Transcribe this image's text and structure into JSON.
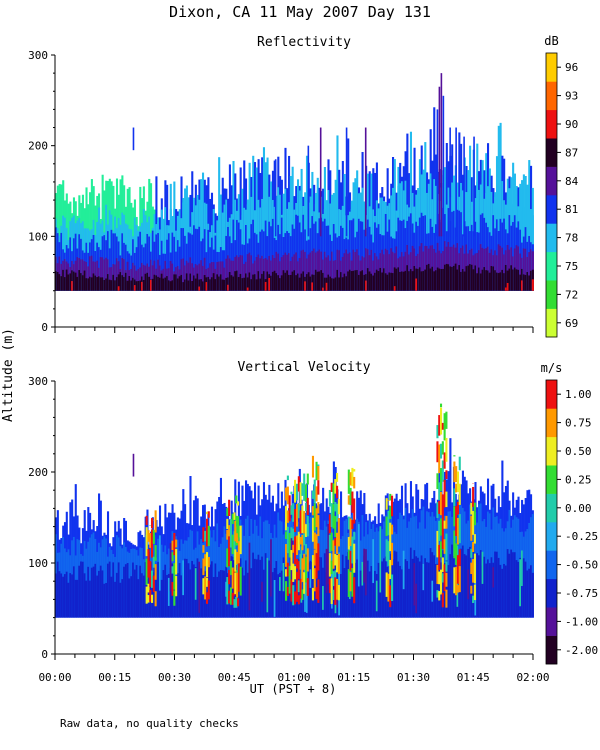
{
  "figure": {
    "title": "Dixon, CA 11 May 2007  Day 131",
    "ylabel": "Altitude (m)",
    "xlabel": "UT  (PST + 8)",
    "footnote": "Raw data, no quality checks",
    "time_ticks": [
      "00:00",
      "00:15",
      "00:30",
      "00:45",
      "01:00",
      "01:15",
      "01:30",
      "01:45",
      "02:00"
    ],
    "xlim_minutes": [
      0,
      120
    ]
  },
  "chart_data": [
    {
      "type": "heatmap",
      "title": "Reflectivity",
      "ylim": [
        0,
        300
      ],
      "yticks": [
        0,
        100,
        200,
        300
      ],
      "colorbar": {
        "unit": "dB",
        "labels": [
          "69",
          "72",
          "75",
          "78",
          "81",
          "84",
          "87",
          "90",
          "93",
          "96"
        ],
        "colors": [
          "#ccff33",
          "#33dd33",
          "#22ee99",
          "#22bbee",
          "#1133ee",
          "#551199",
          "#220022",
          "#ee1111",
          "#ff6600",
          "#ffcc00"
        ]
      },
      "base_altitude": 40,
      "layers": [
        {
          "name": "green edge",
          "color": "#22ee99"
        },
        {
          "name": "cyan zone",
          "color": "#22bbee"
        },
        {
          "name": "blue zone",
          "color": "#1133ee"
        },
        {
          "name": "purple zone",
          "color": "#551199"
        },
        {
          "name": "dark base",
          "color": "#220022"
        }
      ],
      "profile": [
        {
          "t": 0,
          "top": 140,
          "cyan": 115,
          "blue": 95,
          "purple": 75,
          "dark": 60
        },
        {
          "t": 5,
          "top": 135,
          "cyan": 112,
          "blue": 92,
          "purple": 72,
          "dark": 58
        },
        {
          "t": 10,
          "top": 140,
          "cyan": 118,
          "blue": 95,
          "purple": 72,
          "dark": 57
        },
        {
          "t": 15,
          "top": 150,
          "cyan": 120,
          "blue": 95,
          "purple": 70,
          "dark": 56
        },
        {
          "t": 20,
          "top": 130,
          "cyan": 115,
          "blue": 90,
          "purple": 68,
          "dark": 55
        },
        {
          "t": 25,
          "top": 145,
          "cyan": 120,
          "blue": 95,
          "purple": 70,
          "dark": 56
        },
        {
          "t": 30,
          "top": 140,
          "cyan": 118,
          "blue": 92,
          "purple": 68,
          "dark": 54
        },
        {
          "t": 35,
          "top": 150,
          "cyan": 125,
          "blue": 100,
          "purple": 72,
          "dark": 55
        },
        {
          "t": 40,
          "top": 145,
          "cyan": 120,
          "blue": 95,
          "purple": 70,
          "dark": 55
        },
        {
          "t": 45,
          "top": 165,
          "cyan": 135,
          "blue": 105,
          "purple": 75,
          "dark": 58
        },
        {
          "t": 50,
          "top": 160,
          "cyan": 135,
          "blue": 105,
          "purple": 75,
          "dark": 57
        },
        {
          "t": 55,
          "top": 170,
          "cyan": 140,
          "blue": 110,
          "purple": 78,
          "dark": 58
        },
        {
          "t": 60,
          "top": 165,
          "cyan": 140,
          "blue": 110,
          "purple": 78,
          "dark": 58
        },
        {
          "t": 65,
          "top": 170,
          "cyan": 145,
          "blue": 110,
          "purple": 80,
          "dark": 60
        },
        {
          "t": 70,
          "top": 160,
          "cyan": 135,
          "blue": 105,
          "purple": 78,
          "dark": 58
        },
        {
          "t": 75,
          "top": 165,
          "cyan": 140,
          "blue": 110,
          "purple": 80,
          "dark": 60
        },
        {
          "t": 80,
          "top": 160,
          "cyan": 135,
          "blue": 108,
          "purple": 80,
          "dark": 60
        },
        {
          "t": 85,
          "top": 165,
          "cyan": 140,
          "blue": 112,
          "purple": 82,
          "dark": 62
        },
        {
          "t": 90,
          "top": 175,
          "cyan": 150,
          "blue": 115,
          "purple": 85,
          "dark": 65
        },
        {
          "t": 95,
          "top": 185,
          "cyan": 155,
          "blue": 118,
          "purple": 88,
          "dark": 66
        },
        {
          "t": 100,
          "top": 180,
          "cyan": 150,
          "blue": 118,
          "purple": 88,
          "dark": 66
        },
        {
          "t": 105,
          "top": 175,
          "cyan": 148,
          "blue": 115,
          "purple": 85,
          "dark": 64
        },
        {
          "t": 110,
          "top": 172,
          "cyan": 145,
          "blue": 112,
          "purple": 85,
          "dark": 64
        },
        {
          "t": 115,
          "top": 170,
          "cyan": 142,
          "blue": 110,
          "purple": 84,
          "dark": 63
        },
        {
          "t": 120,
          "top": 160,
          "cyan": 135,
          "blue": 105,
          "purple": 80,
          "dark": 60
        }
      ],
      "spikes": [
        {
          "t": 19.5,
          "alt": 220,
          "alt_from": 195,
          "color": "#1133ee"
        },
        {
          "t": 55.2,
          "alt": 185,
          "color": "#1133ee"
        },
        {
          "t": 63.4,
          "alt": 200,
          "color": "#1133ee"
        },
        {
          "t": 66.5,
          "alt": 220,
          "color": "#551199"
        },
        {
          "t": 73.0,
          "alt": 220,
          "color": "#1133ee"
        },
        {
          "t": 77.8,
          "alt": 220,
          "color": "#551199"
        },
        {
          "t": 95.8,
          "alt": 240,
          "color": "#1133ee"
        },
        {
          "t": 96.3,
          "alt": 265,
          "color": "#551199"
        },
        {
          "t": 96.8,
          "alt": 280,
          "color": "#551199"
        },
        {
          "t": 97.3,
          "alt": 255,
          "color": "#1133ee"
        },
        {
          "t": 99.0,
          "alt": 220,
          "color": "#1133ee"
        },
        {
          "t": 100.5,
          "alt": 220,
          "color": "#1133ee"
        },
        {
          "t": 102.5,
          "alt": 210,
          "color": "#1133ee"
        },
        {
          "t": 105.0,
          "alt": 210,
          "color": "#1133ee"
        }
      ]
    },
    {
      "type": "heatmap",
      "title": "Vertical Velocity",
      "ylim": [
        0,
        300
      ],
      "yticks": [
        0,
        100,
        200,
        300
      ],
      "colorbar": {
        "unit": "m/s",
        "labels": [
          "-2.00",
          "-1.00",
          "-0.75",
          "-0.50",
          "-0.25",
          "0.00",
          "0.25",
          "0.50",
          "0.75",
          "1.00"
        ],
        "colors": [
          "#220022",
          "#551199",
          "#1122cc",
          "#1166ee",
          "#22aaee",
          "#22ccaa",
          "#33dd33",
          "#eeee22",
          "#ff9900",
          "#ee1111"
        ]
      },
      "base_altitude": 40,
      "layers": [
        {
          "name": "edge",
          "color": "#1133ee"
        },
        {
          "name": "main",
          "color": "#1166ee"
        },
        {
          "name": "core",
          "color": "#1122cc"
        }
      ],
      "profile": [
        {
          "t": 0,
          "top": 140,
          "main": 120,
          "core": 90
        },
        {
          "t": 10,
          "top": 140,
          "main": 120,
          "core": 90
        },
        {
          "t": 20,
          "top": 135,
          "main": 115,
          "core": 88
        },
        {
          "t": 30,
          "top": 150,
          "main": 125,
          "core": 92
        },
        {
          "t": 40,
          "top": 160,
          "main": 130,
          "core": 95
        },
        {
          "t": 50,
          "top": 170,
          "main": 140,
          "core": 100
        },
        {
          "t": 60,
          "top": 170,
          "main": 145,
          "core": 100
        },
        {
          "t": 70,
          "top": 165,
          "main": 140,
          "core": 100
        },
        {
          "t": 80,
          "top": 160,
          "main": 138,
          "core": 100
        },
        {
          "t": 90,
          "top": 175,
          "main": 150,
          "core": 105
        },
        {
          "t": 100,
          "top": 185,
          "main": 155,
          "core": 108
        },
        {
          "t": 110,
          "top": 175,
          "main": 150,
          "core": 105
        },
        {
          "t": 120,
          "top": 165,
          "main": 140,
          "core": 100
        }
      ],
      "updrafts": [
        {
          "t": 24,
          "alt": 170,
          "width": 2.5
        },
        {
          "t": 30,
          "alt": 150,
          "width": 1.5
        },
        {
          "t": 38,
          "alt": 160,
          "width": 2.0
        },
        {
          "t": 44.5,
          "alt": 175,
          "width": 3.0
        },
        {
          "t": 46,
          "alt": 165,
          "width": 2.0
        },
        {
          "t": 59,
          "alt": 200,
          "width": 2.5
        },
        {
          "t": 62,
          "alt": 210,
          "width": 3.0
        },
        {
          "t": 65.5,
          "alt": 220,
          "width": 2.0
        },
        {
          "t": 70,
          "alt": 200,
          "width": 2.5
        },
        {
          "t": 74.5,
          "alt": 210,
          "width": 2.0
        },
        {
          "t": 84,
          "alt": 180,
          "width": 2.0
        },
        {
          "t": 97,
          "alt": 280,
          "width": 2.5
        },
        {
          "t": 101,
          "alt": 220,
          "width": 2.0
        },
        {
          "t": 105,
          "alt": 200,
          "width": 1.5
        }
      ],
      "spikes": [
        {
          "t": 19.5,
          "alt": 220,
          "alt_from": 195,
          "color": "#551199"
        }
      ]
    }
  ]
}
